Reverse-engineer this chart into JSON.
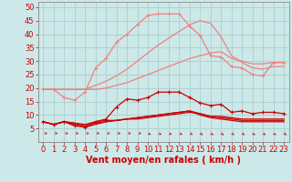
{
  "xlabel": "Vent moyen/en rafales ( km/h )",
  "x": [
    0,
    1,
    2,
    3,
    4,
    5,
    6,
    7,
    8,
    9,
    10,
    11,
    12,
    13,
    14,
    15,
    16,
    17,
    18,
    19,
    20,
    21,
    22,
    23
  ],
  "line_light1": [
    19.5,
    19.5,
    19.5,
    19.5,
    19.5,
    19.5,
    20.0,
    21.0,
    22.0,
    23.5,
    25.0,
    26.5,
    28.0,
    29.5,
    31.0,
    32.0,
    33.0,
    33.5,
    31.0,
    30.0,
    29.0,
    29.0,
    29.5,
    29.5
  ],
  "line_light2": [
    19.5,
    19.5,
    19.5,
    19.5,
    19.5,
    21.0,
    22.5,
    24.5,
    27.0,
    30.0,
    33.0,
    36.0,
    38.5,
    41.0,
    43.5,
    45.0,
    44.0,
    39.0,
    32.0,
    29.5,
    27.5,
    27.0,
    28.0,
    28.0
  ],
  "line_light3_marked": [
    19.5,
    19.5,
    16.5,
    15.5,
    18.5,
    27.5,
    31.0,
    37.0,
    40.0,
    43.5,
    47.0,
    47.5,
    47.5,
    47.5,
    43.0,
    39.5,
    32.0,
    31.5,
    28.0,
    27.5,
    25.0,
    24.5,
    29.5,
    29.5
  ],
  "line_dark1": [
    7.5,
    6.5,
    7.5,
    7.0,
    6.0,
    7.0,
    7.5,
    8.0,
    8.5,
    9.0,
    9.5,
    10.0,
    10.5,
    11.0,
    11.5,
    10.5,
    9.5,
    9.5,
    9.0,
    8.5,
    8.5,
    8.5,
    8.5,
    8.5
  ],
  "line_dark2": [
    7.5,
    6.5,
    7.5,
    6.5,
    5.5,
    6.5,
    7.5,
    8.0,
    8.5,
    9.0,
    9.5,
    10.0,
    10.5,
    11.0,
    11.5,
    10.0,
    9.0,
    8.5,
    8.0,
    7.5,
    7.5,
    7.5,
    7.5,
    7.5
  ],
  "line_dark3": [
    7.5,
    6.5,
    7.5,
    7.0,
    6.5,
    7.5,
    8.0,
    8.0,
    8.5,
    8.5,
    9.0,
    9.5,
    10.0,
    10.5,
    11.0,
    10.5,
    9.5,
    9.0,
    8.5,
    8.0,
    8.0,
    8.0,
    8.0,
    8.0
  ],
  "line_dark_marked": [
    7.5,
    6.5,
    7.5,
    6.0,
    5.5,
    7.5,
    8.5,
    13.0,
    16.0,
    15.5,
    16.5,
    18.5,
    18.5,
    18.5,
    16.5,
    14.5,
    13.5,
    14.0,
    11.0,
    11.5,
    10.5,
    11.0,
    11.0,
    10.5
  ],
  "bg_color": "#cde8e8",
  "grid_color": "#aacfcf",
  "line_color_light": "#f08080",
  "line_color_dark": "#cc0000",
  "ylim": [
    0,
    52
  ],
  "yticks": [
    5,
    10,
    15,
    20,
    25,
    30,
    35,
    40,
    45,
    50
  ],
  "xlabel_fontsize": 7,
  "tick_fontsize": 6
}
